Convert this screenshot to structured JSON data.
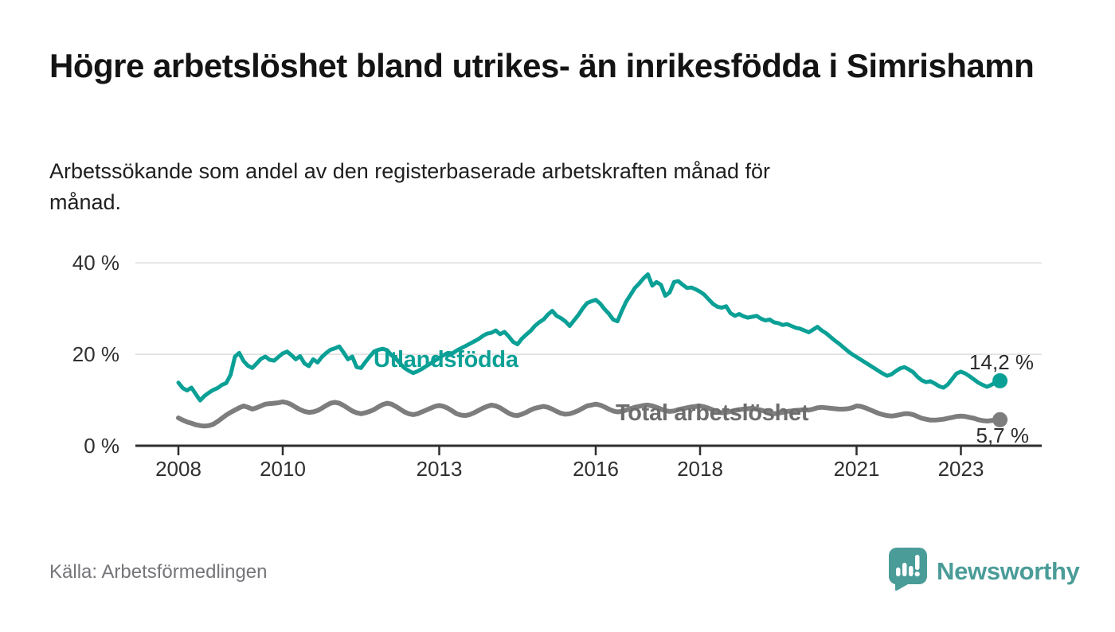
{
  "title": "Högre arbetslöshet bland utrikes- än inrikesfödda i Simrishamn",
  "subtitle": "Arbetssökande som andel av den registerbaserade arbetskraften månad för månad.",
  "source": "Källa: Arbetsförmedlingen",
  "branding": {
    "name": "Newsworthy",
    "icon": "newsworthy-speech-bubble-chart-icon",
    "color": "#4a9c98"
  },
  "chart_data": {
    "type": "line",
    "title": "Högre arbetslöshet bland utrikes- än inrikesfödda i Simrishamn",
    "xlabel": "",
    "ylabel": "",
    "x_start": "2008-01",
    "x_end": "2023-10",
    "x_interval": "monthly",
    "x_ticks": [
      2008,
      2010,
      2013,
      2016,
      2018,
      2021,
      2023
    ],
    "y_ticks": [
      {
        "label": "0 %",
        "value": 0
      },
      {
        "label": "20 %",
        "value": 20
      },
      {
        "label": "40 %",
        "value": 40
      }
    ],
    "ylim": [
      0,
      43
    ],
    "grid": "horizontal",
    "legend_position": "inline-labels",
    "series": [
      {
        "name": "Utlandsfödda",
        "color": "#0ba096",
        "end_label": "14,2 %",
        "last_value": 14.2,
        "values": [
          13.8,
          12.6,
          12.1,
          12.7,
          11.3,
          9.9,
          10.9,
          11.6,
          12.2,
          12.6,
          13.3,
          13.7,
          15.5,
          19.5,
          20.3,
          18.5,
          17.5,
          17.0,
          18.0,
          19.0,
          19.5,
          18.8,
          18.6,
          19.4,
          20.2,
          20.6,
          19.8,
          18.9,
          19.6,
          18.0,
          17.4,
          18.9,
          18.2,
          19.4,
          20.3,
          21.0,
          21.3,
          21.7,
          20.4,
          18.9,
          19.5,
          17.2,
          17.0,
          18.3,
          19.5,
          20.6,
          21.0,
          21.2,
          20.9,
          19.8,
          19.1,
          18.0,
          17.0,
          16.4,
          15.9,
          16.3,
          16.8,
          17.4,
          18.0,
          18.6,
          19.2,
          19.8,
          20.3,
          20.2,
          20.8,
          21.3,
          21.8,
          22.3,
          22.8,
          23.3,
          24.0,
          24.5,
          24.7,
          25.2,
          24.4,
          24.9,
          23.9,
          22.7,
          22.2,
          23.4,
          24.3,
          25.1,
          26.2,
          27.0,
          27.6,
          28.7,
          29.5,
          28.4,
          27.9,
          27.2,
          26.2,
          27.4,
          28.6,
          30.0,
          31.2,
          31.6,
          31.9,
          31.1,
          29.9,
          28.9,
          27.6,
          27.2,
          29.5,
          31.5,
          33.0,
          34.5,
          35.5,
          36.6,
          37.5,
          35.0,
          35.8,
          35.2,
          32.8,
          33.5,
          35.8,
          36.0,
          35.2,
          34.5,
          34.6,
          34.2,
          33.7,
          33.0,
          32.0,
          31.0,
          30.4,
          30.2,
          30.5,
          29.0,
          28.4,
          28.8,
          28.3,
          28.0,
          28.2,
          28.4,
          27.8,
          27.4,
          27.6,
          27.0,
          26.8,
          26.4,
          26.6,
          26.2,
          25.8,
          25.6,
          25.2,
          24.8,
          25.4,
          26.0,
          25.2,
          24.6,
          23.8,
          23.0,
          22.3,
          21.5,
          20.7,
          20.0,
          19.4,
          18.8,
          18.2,
          17.6,
          17.0,
          16.4,
          15.8,
          15.3,
          15.6,
          16.3,
          16.9,
          17.2,
          16.7,
          16.1,
          15.1,
          14.3,
          13.9,
          14.1,
          13.6,
          13.0,
          12.7,
          13.4,
          14.6,
          15.8,
          16.2,
          15.8,
          15.2,
          14.5,
          13.8,
          13.3,
          12.9,
          13.3,
          13.9,
          14.2
        ]
      },
      {
        "name": "Total arbetslöshet",
        "color": "#7d7d7d",
        "end_label": "5,7 %",
        "last_value": 5.7,
        "values": [
          6.1,
          5.6,
          5.2,
          4.9,
          4.6,
          4.4,
          4.3,
          4.4,
          4.7,
          5.3,
          6.0,
          6.7,
          7.3,
          7.8,
          8.3,
          8.7,
          8.4,
          8.0,
          8.3,
          8.7,
          9.1,
          9.2,
          9.3,
          9.4,
          9.6,
          9.4,
          9.0,
          8.4,
          7.9,
          7.5,
          7.3,
          7.4,
          7.7,
          8.2,
          8.8,
          9.3,
          9.5,
          9.3,
          8.8,
          8.2,
          7.6,
          7.2,
          7.0,
          7.2,
          7.5,
          7.9,
          8.5,
          9.0,
          9.3,
          9.1,
          8.6,
          8.0,
          7.4,
          7.0,
          6.8,
          7.0,
          7.4,
          7.8,
          8.2,
          8.6,
          8.8,
          8.6,
          8.2,
          7.6,
          7.0,
          6.7,
          6.6,
          6.8,
          7.2,
          7.7,
          8.2,
          8.6,
          8.9,
          8.7,
          8.3,
          7.7,
          7.1,
          6.7,
          6.6,
          6.9,
          7.3,
          7.8,
          8.2,
          8.4,
          8.6,
          8.4,
          8.0,
          7.5,
          7.1,
          6.9,
          7.0,
          7.3,
          7.7,
          8.2,
          8.7,
          8.9,
          9.1,
          8.9,
          8.5,
          8.0,
          7.6,
          7.4,
          7.5,
          7.8,
          8.1,
          8.4,
          8.6,
          8.8,
          8.9,
          8.7,
          8.4,
          8.0,
          7.7,
          7.5,
          7.6,
          7.9,
          8.1,
          8.3,
          8.5,
          8.6,
          8.7,
          8.5,
          8.2,
          7.8,
          7.4,
          7.2,
          7.3,
          7.5,
          7.7,
          7.9,
          8.0,
          8.1,
          8.2,
          8.0,
          7.8,
          7.5,
          7.2,
          7.0,
          7.1,
          7.3,
          7.5,
          7.6,
          7.7,
          7.8,
          7.9,
          7.8,
          8.0,
          8.3,
          8.4,
          8.3,
          8.2,
          8.1,
          8.0,
          8.0,
          8.1,
          8.3,
          8.7,
          8.6,
          8.3,
          7.9,
          7.5,
          7.1,
          6.8,
          6.6,
          6.5,
          6.6,
          6.8,
          7.0,
          7.0,
          6.8,
          6.4,
          6.0,
          5.8,
          5.6,
          5.6,
          5.7,
          5.8,
          6.0,
          6.2,
          6.4,
          6.5,
          6.4,
          6.2,
          6.0,
          5.7,
          5.5,
          5.4,
          5.5,
          5.6,
          5.7
        ]
      }
    ]
  }
}
